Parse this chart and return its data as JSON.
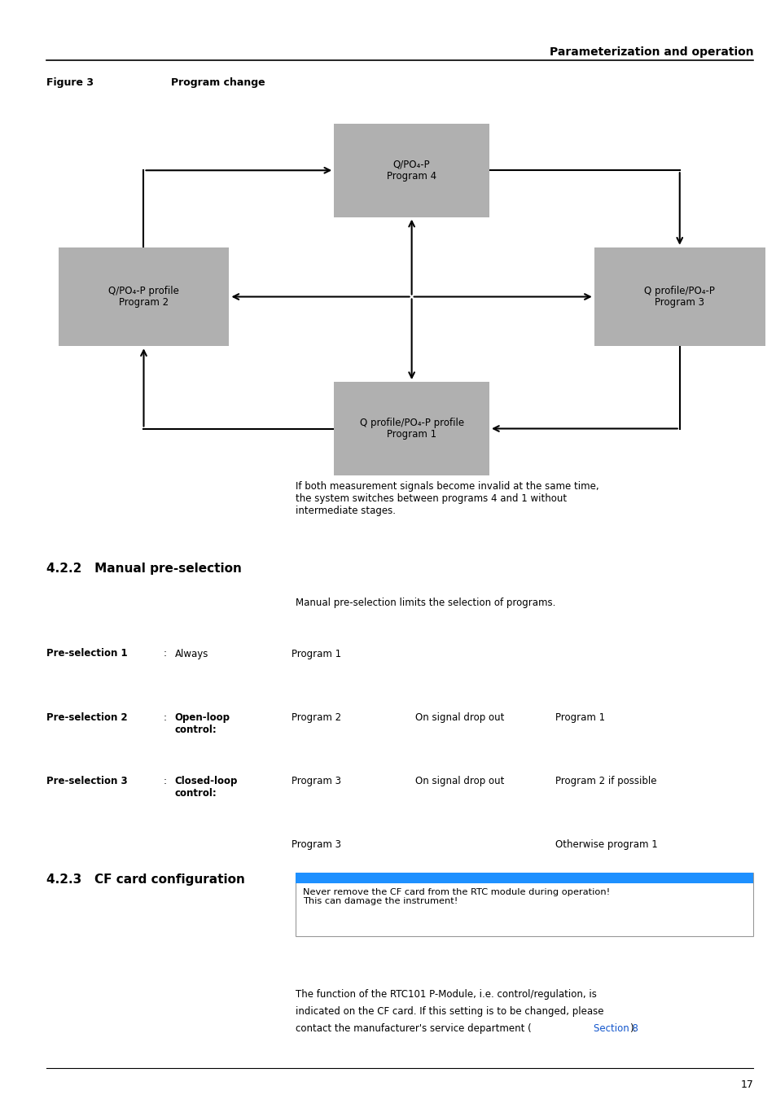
{
  "title_right": "Parameterization and operation",
  "figure_label": "Figure 3",
  "figure_title": "Program change",
  "box_color": "#b0b0b0",
  "box_text_color": "#000000",
  "section_422": "4.2.2   Manual pre-selection",
  "para_422": "Manual pre-selection limits the selection of programs.",
  "section_423": "4.2.3   CF card configuration",
  "warning_bar_color": "#1e90ff",
  "warning_text": "Never remove the CF card from the RTC module during operation!\nThis can damage the instrument!",
  "page_number": "17",
  "bg_color": "#ffffff"
}
